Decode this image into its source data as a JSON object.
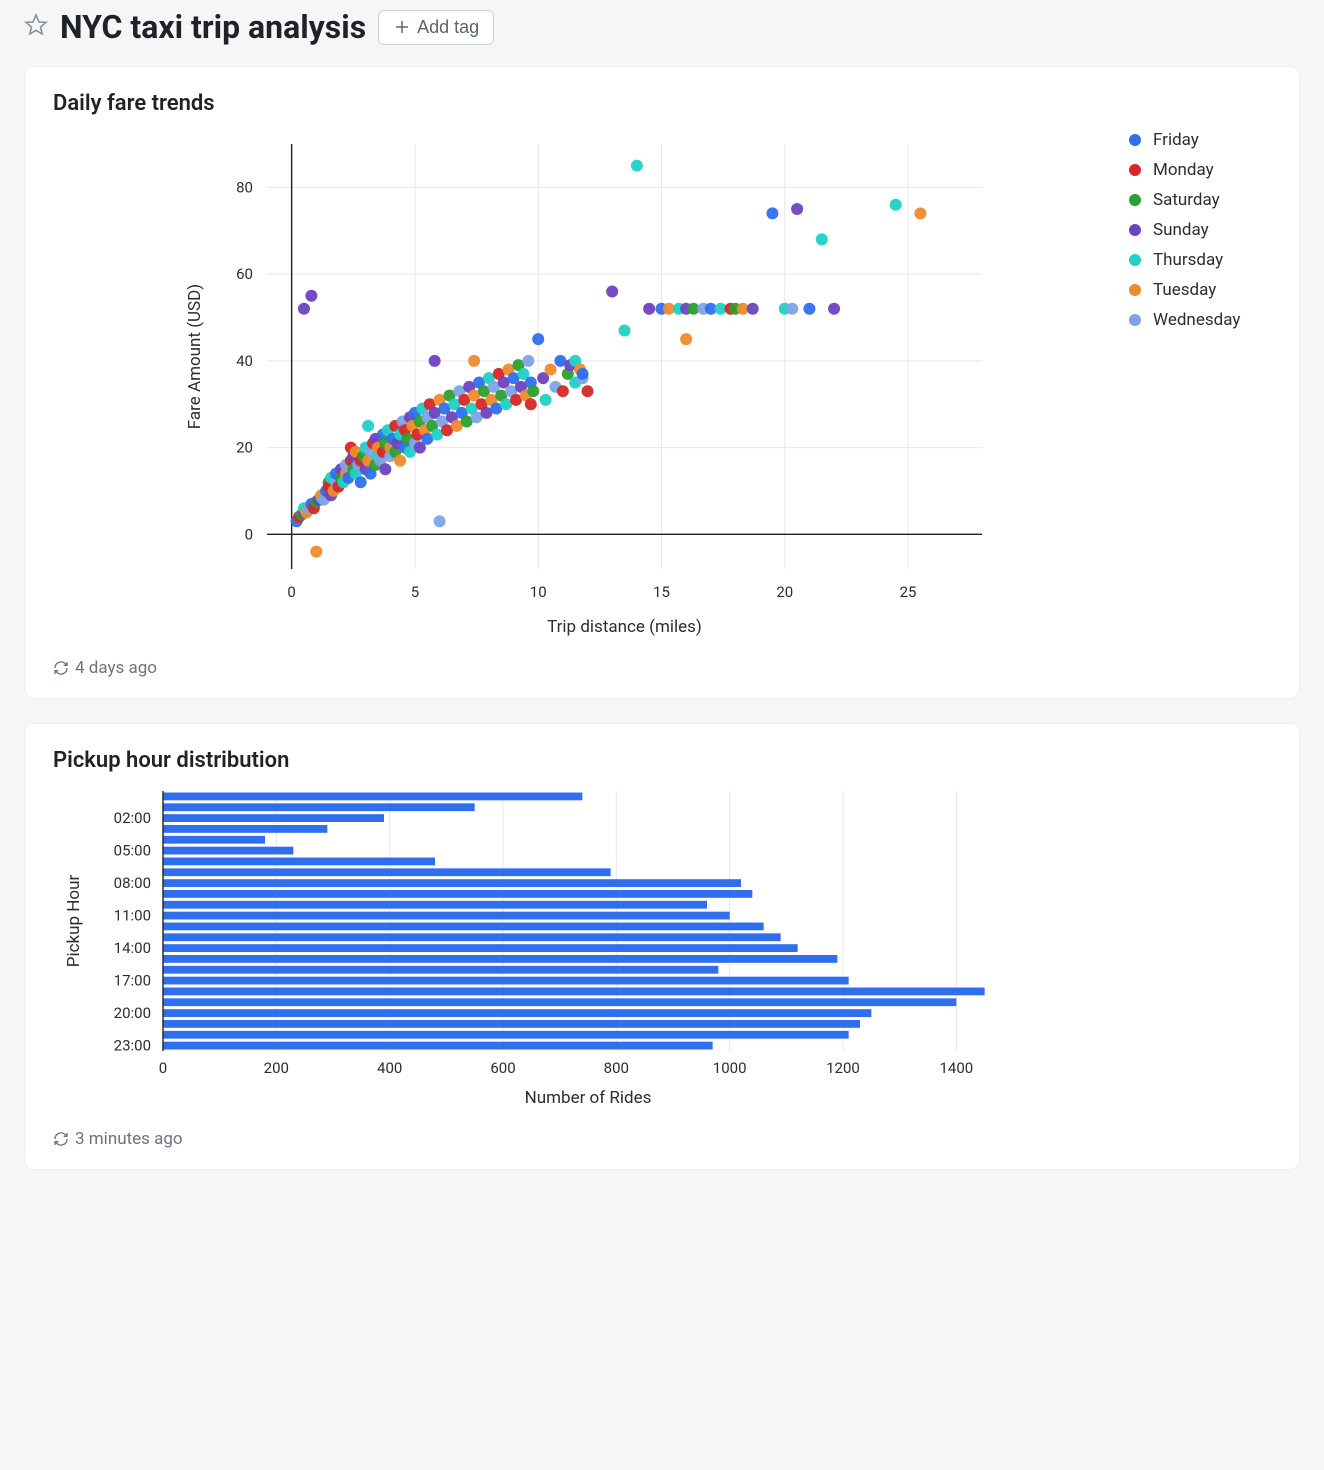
{
  "header": {
    "title": "NYC taxi trip analysis",
    "add_tag_label": "Add tag"
  },
  "scatter_card": {
    "title": "Daily fare trends",
    "timestamp": "4 days ago",
    "chart": {
      "type": "scatter",
      "xlabel": "Trip distance (miles)",
      "ylabel": "Fare Amount (USD)",
      "xlim": [
        -1,
        28
      ],
      "ylim": [
        -8,
        90
      ],
      "xtick_step": 5,
      "xtick_start": 0,
      "xtick_end": 25,
      "ytick_step": 20,
      "ytick_start": 0,
      "ytick_end": 80,
      "marker_radius": 6,
      "background_color": "#ffffff",
      "grid_color": "#e4e7eb",
      "axis_color": "#222222",
      "series": [
        {
          "name": "Friday",
          "color": "#2f6fed"
        },
        {
          "name": "Monday",
          "color": "#d62728"
        },
        {
          "name": "Saturday",
          "color": "#2ca02c"
        },
        {
          "name": "Sunday",
          "color": "#6f42c1"
        },
        {
          "name": "Thursday",
          "color": "#1fd1c7"
        },
        {
          "name": "Tuesday",
          "color": "#f08b2c"
        },
        {
          "name": "Wednesday",
          "color": "#7ea3e6"
        }
      ],
      "points": [
        [
          0.2,
          3,
          "Friday"
        ],
        [
          0.3,
          4,
          "Monday"
        ],
        [
          0.4,
          4.5,
          "Saturday"
        ],
        [
          0.5,
          5,
          "Sunday"
        ],
        [
          0.5,
          6,
          "Thursday"
        ],
        [
          0.6,
          5,
          "Tuesday"
        ],
        [
          0.7,
          6,
          "Wednesday"
        ],
        [
          0.5,
          52,
          "Sunday"
        ],
        [
          0.8,
          55,
          "Sunday"
        ],
        [
          0.8,
          7,
          "Friday"
        ],
        [
          0.9,
          6,
          "Monday"
        ],
        [
          1.0,
          7.5,
          "Saturday"
        ],
        [
          1.0,
          -4,
          "Tuesday"
        ],
        [
          1.1,
          8,
          "Sunday"
        ],
        [
          1.2,
          8.5,
          "Thursday"
        ],
        [
          1.2,
          9,
          "Tuesday"
        ],
        [
          1.3,
          8,
          "Wednesday"
        ],
        [
          1.4,
          10,
          "Friday"
        ],
        [
          1.5,
          12,
          "Saturday"
        ],
        [
          1.5,
          11,
          "Monday"
        ],
        [
          1.6,
          9,
          "Sunday"
        ],
        [
          1.6,
          13,
          "Thursday"
        ],
        [
          1.7,
          10,
          "Tuesday"
        ],
        [
          1.8,
          12,
          "Wednesday"
        ],
        [
          1.8,
          14,
          "Friday"
        ],
        [
          1.9,
          11,
          "Monday"
        ],
        [
          2.0,
          13,
          "Saturday"
        ],
        [
          2.0,
          15,
          "Sunday"
        ],
        [
          2.1,
          12,
          "Thursday"
        ],
        [
          2.2,
          14,
          "Tuesday"
        ],
        [
          2.2,
          16,
          "Wednesday"
        ],
        [
          2.3,
          13,
          "Friday"
        ],
        [
          2.4,
          17,
          "Monday"
        ],
        [
          2.4,
          20,
          "Monday"
        ],
        [
          2.5,
          15,
          "Saturday"
        ],
        [
          2.5,
          18,
          "Sunday"
        ],
        [
          2.6,
          14,
          "Thursday"
        ],
        [
          2.6,
          19,
          "Tuesday"
        ],
        [
          2.7,
          16,
          "Wednesday"
        ],
        [
          2.8,
          12,
          "Friday"
        ],
        [
          2.8,
          17,
          "Monday"
        ],
        [
          2.9,
          18,
          "Saturday"
        ],
        [
          3.0,
          15,
          "Sunday"
        ],
        [
          3.0,
          20,
          "Thursday"
        ],
        [
          3.1,
          17,
          "Tuesday"
        ],
        [
          3.1,
          25,
          "Thursday"
        ],
        [
          3.2,
          19,
          "Wednesday"
        ],
        [
          3.2,
          14,
          "Friday"
        ],
        [
          3.3,
          21,
          "Monday"
        ],
        [
          3.4,
          16,
          "Saturday"
        ],
        [
          3.4,
          22,
          "Sunday"
        ],
        [
          3.5,
          18,
          "Thursday"
        ],
        [
          3.5,
          20,
          "Tuesday"
        ],
        [
          3.6,
          17,
          "Wednesday"
        ],
        [
          3.7,
          23,
          "Friday"
        ],
        [
          3.7,
          19,
          "Monday"
        ],
        [
          3.8,
          21,
          "Saturday"
        ],
        [
          3.8,
          15,
          "Sunday"
        ],
        [
          3.9,
          24,
          "Thursday"
        ],
        [
          4.0,
          20,
          "Tuesday"
        ],
        [
          4.0,
          18,
          "Wednesday"
        ],
        [
          4.1,
          22,
          "Friday"
        ],
        [
          4.2,
          25,
          "Monday"
        ],
        [
          4.2,
          19,
          "Saturday"
        ],
        [
          4.3,
          21,
          "Sunday"
        ],
        [
          4.4,
          23,
          "Thursday"
        ],
        [
          4.4,
          17,
          "Tuesday"
        ],
        [
          4.5,
          26,
          "Wednesday"
        ],
        [
          4.6,
          20,
          "Friday"
        ],
        [
          4.6,
          24,
          "Monday"
        ],
        [
          4.7,
          22,
          "Saturday"
        ],
        [
          4.8,
          27,
          "Sunday"
        ],
        [
          4.8,
          19,
          "Thursday"
        ],
        [
          4.9,
          25,
          "Tuesday"
        ],
        [
          5.0,
          21,
          "Wednesday"
        ],
        [
          5.0,
          28,
          "Friday"
        ],
        [
          5.1,
          23,
          "Monday"
        ],
        [
          5.2,
          26,
          "Saturday"
        ],
        [
          5.2,
          20,
          "Sunday"
        ],
        [
          5.3,
          29,
          "Thursday"
        ],
        [
          5.4,
          24,
          "Tuesday"
        ],
        [
          5.5,
          27,
          "Wednesday"
        ],
        [
          5.5,
          22,
          "Friday"
        ],
        [
          5.6,
          30,
          "Monday"
        ],
        [
          5.7,
          25,
          "Saturday"
        ],
        [
          5.8,
          28,
          "Sunday"
        ],
        [
          5.8,
          40,
          "Sunday"
        ],
        [
          5.9,
          23,
          "Thursday"
        ],
        [
          6.0,
          31,
          "Tuesday"
        ],
        [
          6.0,
          3,
          "Wednesday"
        ],
        [
          6.1,
          26,
          "Wednesday"
        ],
        [
          6.2,
          29,
          "Friday"
        ],
        [
          6.3,
          24,
          "Monday"
        ],
        [
          6.4,
          32,
          "Saturday"
        ],
        [
          6.5,
          27,
          "Sunday"
        ],
        [
          6.6,
          30,
          "Thursday"
        ],
        [
          6.7,
          25,
          "Tuesday"
        ],
        [
          6.8,
          33,
          "Wednesday"
        ],
        [
          6.9,
          28,
          "Friday"
        ],
        [
          7.0,
          31,
          "Monday"
        ],
        [
          7.1,
          26,
          "Saturday"
        ],
        [
          7.2,
          34,
          "Sunday"
        ],
        [
          7.3,
          29,
          "Thursday"
        ],
        [
          7.4,
          32,
          "Tuesday"
        ],
        [
          7.4,
          40,
          "Tuesday"
        ],
        [
          7.5,
          27,
          "Wednesday"
        ],
        [
          7.6,
          35,
          "Friday"
        ],
        [
          7.7,
          30,
          "Monday"
        ],
        [
          7.8,
          33,
          "Saturday"
        ],
        [
          7.9,
          28,
          "Sunday"
        ],
        [
          8.0,
          36,
          "Thursday"
        ],
        [
          8.1,
          31,
          "Tuesday"
        ],
        [
          8.2,
          34,
          "Wednesday"
        ],
        [
          8.3,
          29,
          "Friday"
        ],
        [
          8.4,
          37,
          "Monday"
        ],
        [
          8.5,
          32,
          "Saturday"
        ],
        [
          8.6,
          35,
          "Sunday"
        ],
        [
          8.7,
          30,
          "Thursday"
        ],
        [
          8.8,
          38,
          "Tuesday"
        ],
        [
          8.9,
          33,
          "Wednesday"
        ],
        [
          9.0,
          36,
          "Friday"
        ],
        [
          9.1,
          31,
          "Monday"
        ],
        [
          9.2,
          39,
          "Saturday"
        ],
        [
          9.3,
          34,
          "Sunday"
        ],
        [
          9.4,
          37,
          "Thursday"
        ],
        [
          9.5,
          32,
          "Tuesday"
        ],
        [
          9.6,
          40,
          "Wednesday"
        ],
        [
          9.7,
          35,
          "Friday"
        ],
        [
          9.7,
          30,
          "Monday"
        ],
        [
          9.8,
          33,
          "Saturday"
        ],
        [
          10.0,
          45,
          "Friday"
        ],
        [
          10.2,
          36,
          "Sunday"
        ],
        [
          10.3,
          31,
          "Thursday"
        ],
        [
          10.5,
          38,
          "Tuesday"
        ],
        [
          10.7,
          34,
          "Wednesday"
        ],
        [
          10.9,
          40,
          "Friday"
        ],
        [
          11.0,
          33,
          "Monday"
        ],
        [
          11.2,
          37,
          "Saturday"
        ],
        [
          11.3,
          39,
          "Sunday"
        ],
        [
          11.5,
          35,
          "Thursday"
        ],
        [
          11.5,
          40,
          "Thursday"
        ],
        [
          11.7,
          38,
          "Tuesday"
        ],
        [
          11.8,
          36,
          "Wednesday"
        ],
        [
          11.8,
          37,
          "Friday"
        ],
        [
          12.0,
          33,
          "Monday"
        ],
        [
          13.0,
          56,
          "Sunday"
        ],
        [
          13.5,
          47,
          "Thursday"
        ],
        [
          14.0,
          85,
          "Thursday"
        ],
        [
          14.5,
          52,
          "Sunday"
        ],
        [
          15.0,
          52,
          "Friday"
        ],
        [
          15.3,
          52,
          "Tuesday"
        ],
        [
          15.7,
          52,
          "Thursday"
        ],
        [
          16.0,
          45,
          "Tuesday"
        ],
        [
          16.0,
          52,
          "Sunday"
        ],
        [
          16.3,
          52,
          "Saturday"
        ],
        [
          16.7,
          52,
          "Wednesday"
        ],
        [
          17.0,
          52,
          "Friday"
        ],
        [
          17.4,
          52,
          "Thursday"
        ],
        [
          17.8,
          52,
          "Monday"
        ],
        [
          18.0,
          52,
          "Saturday"
        ],
        [
          18.3,
          52,
          "Tuesday"
        ],
        [
          18.7,
          52,
          "Sunday"
        ],
        [
          19.5,
          74,
          "Friday"
        ],
        [
          20.0,
          52,
          "Thursday"
        ],
        [
          20.3,
          52,
          "Wednesday"
        ],
        [
          20.5,
          75,
          "Sunday"
        ],
        [
          21.0,
          52,
          "Friday"
        ],
        [
          21.5,
          68,
          "Thursday"
        ],
        [
          22.0,
          52,
          "Sunday"
        ],
        [
          24.5,
          76,
          "Thursday"
        ],
        [
          25.5,
          74,
          "Tuesday"
        ]
      ]
    }
  },
  "bar_card": {
    "title": "Pickup hour distribution",
    "timestamp": "3 minutes ago",
    "chart": {
      "type": "horizontal-bar",
      "xlabel": "Number of Rides",
      "ylabel": "Pickup Hour",
      "xlim": [
        0,
        1500
      ],
      "xtick_step": 200,
      "xtick_start": 0,
      "xtick_end": 1400,
      "bar_color": "#2f6fed",
      "bar_gap_ratio": 0.28,
      "background_color": "#ffffff",
      "grid_color": "#e4e7eb",
      "y_axis_labels_at": [
        "02:00",
        "05:00",
        "08:00",
        "11:00",
        "14:00",
        "17:00",
        "20:00",
        "23:00"
      ],
      "categories": [
        "00:00",
        "01:00",
        "02:00",
        "03:00",
        "04:00",
        "05:00",
        "06:00",
        "07:00",
        "08:00",
        "09:00",
        "10:00",
        "11:00",
        "12:00",
        "13:00",
        "14:00",
        "15:00",
        "16:00",
        "17:00",
        "18:00",
        "19:00",
        "20:00",
        "21:00",
        "22:00",
        "23:00"
      ],
      "values": [
        740,
        550,
        390,
        290,
        180,
        230,
        480,
        790,
        1020,
        1040,
        960,
        1000,
        1060,
        1090,
        1120,
        1190,
        980,
        1210,
        1450,
        1400,
        1250,
        1230,
        1210,
        970
      ]
    }
  }
}
